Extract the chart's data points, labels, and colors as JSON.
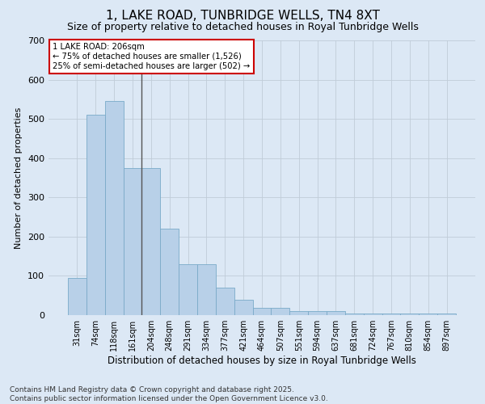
{
  "title": "1, LAKE ROAD, TUNBRIDGE WELLS, TN4 8XT",
  "subtitle": "Size of property relative to detached houses in Royal Tunbridge Wells",
  "xlabel": "Distribution of detached houses by size in Royal Tunbridge Wells",
  "ylabel": "Number of detached properties",
  "categories": [
    "31sqm",
    "74sqm",
    "118sqm",
    "161sqm",
    "204sqm",
    "248sqm",
    "291sqm",
    "334sqm",
    "377sqm",
    "421sqm",
    "464sqm",
    "507sqm",
    "551sqm",
    "594sqm",
    "637sqm",
    "681sqm",
    "724sqm",
    "767sqm",
    "810sqm",
    "854sqm",
    "897sqm"
  ],
  "values": [
    95,
    510,
    545,
    375,
    375,
    220,
    130,
    130,
    70,
    40,
    18,
    18,
    10,
    10,
    10,
    5,
    5,
    5,
    5,
    5,
    5
  ],
  "bar_color": "#b8d0e8",
  "bar_edge_color": "#7aaac8",
  "background_color": "#dce8f5",
  "vline_x_index": 4,
  "vline_color": "#555555",
  "annotation_text": "1 LAKE ROAD: 206sqm\n← 75% of detached houses are smaller (1,526)\n25% of semi-detached houses are larger (502) →",
  "annotation_box_color": "#ffffff",
  "annotation_border_color": "#cc0000",
  "ylim": [
    0,
    700
  ],
  "footer": "Contains HM Land Registry data © Crown copyright and database right 2025.\nContains public sector information licensed under the Open Government Licence v3.0.",
  "title_fontsize": 11,
  "subtitle_fontsize": 9,
  "xlabel_fontsize": 8.5,
  "ylabel_fontsize": 8,
  "tick_fontsize": 7,
  "footer_fontsize": 6.5
}
